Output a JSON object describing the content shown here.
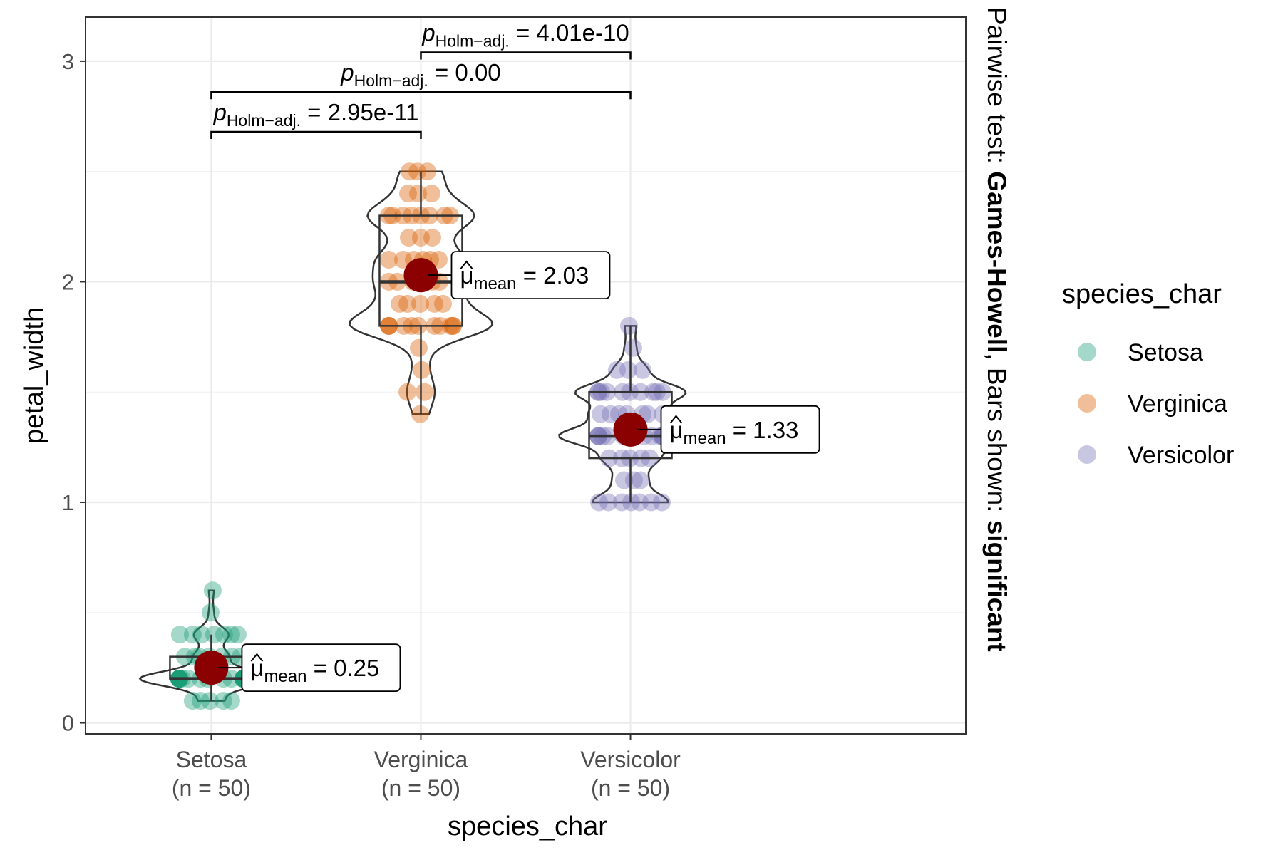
{
  "chart_data": {
    "type": "box",
    "xlabel": "species_char",
    "ylabel": "petal_width",
    "ylim": [
      -0.05,
      3.2
    ],
    "yticks": [
      0,
      1,
      2,
      3
    ],
    "grid": true,
    "legend": {
      "title": "species_char",
      "position": "right"
    },
    "side_caption": {
      "prefix": "Pairwise test: ",
      "test": "Games-Howell",
      "middle": ", Bars shown: ",
      "shown": "significant"
    },
    "mean_point_color": "#8B0000",
    "groups": [
      {
        "name": "Setosa",
        "n_label": "(n = 50)",
        "color": "#1B9E77",
        "box": {
          "q1": 0.2,
          "median": 0.2,
          "q3": 0.3,
          "lower": 0.1,
          "upper": 0.4
        },
        "mean": 0.25,
        "mean_label": "0.25",
        "points": [
          0.2,
          0.2,
          0.2,
          0.2,
          0.2,
          0.4,
          0.3,
          0.2,
          0.2,
          0.1,
          0.2,
          0.2,
          0.1,
          0.1,
          0.2,
          0.4,
          0.4,
          0.3,
          0.3,
          0.3,
          0.2,
          0.4,
          0.2,
          0.5,
          0.2,
          0.2,
          0.4,
          0.2,
          0.2,
          0.2,
          0.2,
          0.4,
          0.1,
          0.2,
          0.2,
          0.2,
          0.2,
          0.1,
          0.2,
          0.2,
          0.3,
          0.3,
          0.2,
          0.6,
          0.4,
          0.3,
          0.2,
          0.2,
          0.2,
          0.2
        ]
      },
      {
        "name": "Verginica",
        "n_label": "(n = 50)",
        "color": "#D95F02",
        "box": {
          "q1": 1.8,
          "median": 2.0,
          "q3": 2.3,
          "lower": 1.4,
          "upper": 2.5
        },
        "mean": 2.03,
        "mean_label": "2.03",
        "points": [
          2.5,
          1.9,
          2.1,
          1.8,
          2.2,
          2.1,
          1.7,
          1.8,
          1.8,
          2.5,
          2.0,
          1.9,
          2.1,
          2.0,
          2.4,
          2.3,
          1.8,
          2.2,
          2.3,
          1.5,
          2.3,
          2.0,
          2.0,
          1.8,
          2.1,
          1.8,
          1.8,
          1.8,
          2.1,
          1.6,
          1.9,
          2.0,
          2.2,
          1.5,
          1.4,
          2.3,
          2.4,
          1.8,
          1.8,
          2.1,
          2.4,
          2.3,
          1.9,
          2.3,
          2.5,
          2.3,
          1.9,
          2.0,
          2.3,
          1.8
        ]
      },
      {
        "name": "Versicolor",
        "n_label": "(n = 50)",
        "color": "#7570B3",
        "box": {
          "q1": 1.2,
          "median": 1.3,
          "q3": 1.5,
          "lower": 1.0,
          "upper": 1.8
        },
        "mean": 1.33,
        "mean_label": "1.33",
        "points": [
          1.4,
          1.5,
          1.5,
          1.3,
          1.5,
          1.3,
          1.6,
          1.0,
          1.3,
          1.4,
          1.0,
          1.5,
          1.0,
          1.4,
          1.3,
          1.4,
          1.5,
          1.0,
          1.5,
          1.1,
          1.8,
          1.3,
          1.5,
          1.2,
          1.3,
          1.4,
          1.4,
          1.7,
          1.5,
          1.0,
          1.1,
          1.0,
          1.2,
          1.6,
          1.5,
          1.6,
          1.5,
          1.3,
          1.3,
          1.3,
          1.2,
          1.4,
          1.2,
          1.0,
          1.3,
          1.2,
          1.3,
          1.3,
          1.1,
          1.3
        ]
      }
    ],
    "mean_label_math": {
      "symbol": "μ",
      "subscript": "mean",
      "eq": "="
    },
    "comparisons": [
      {
        "group1": "Setosa",
        "group2": "Verginica",
        "level": 2.68,
        "p_value": "2.95e-11"
      },
      {
        "group1": "Setosa",
        "group2": "Versicolor",
        "level": 2.86,
        "p_value": "0.00"
      },
      {
        "group1": "Verginica",
        "group2": "Versicolor",
        "level": 3.04,
        "p_value": "4.01e-10"
      }
    ],
    "comparison_label_math": {
      "p": "p",
      "subscript": "Holm−adj.",
      "eq": "="
    }
  }
}
